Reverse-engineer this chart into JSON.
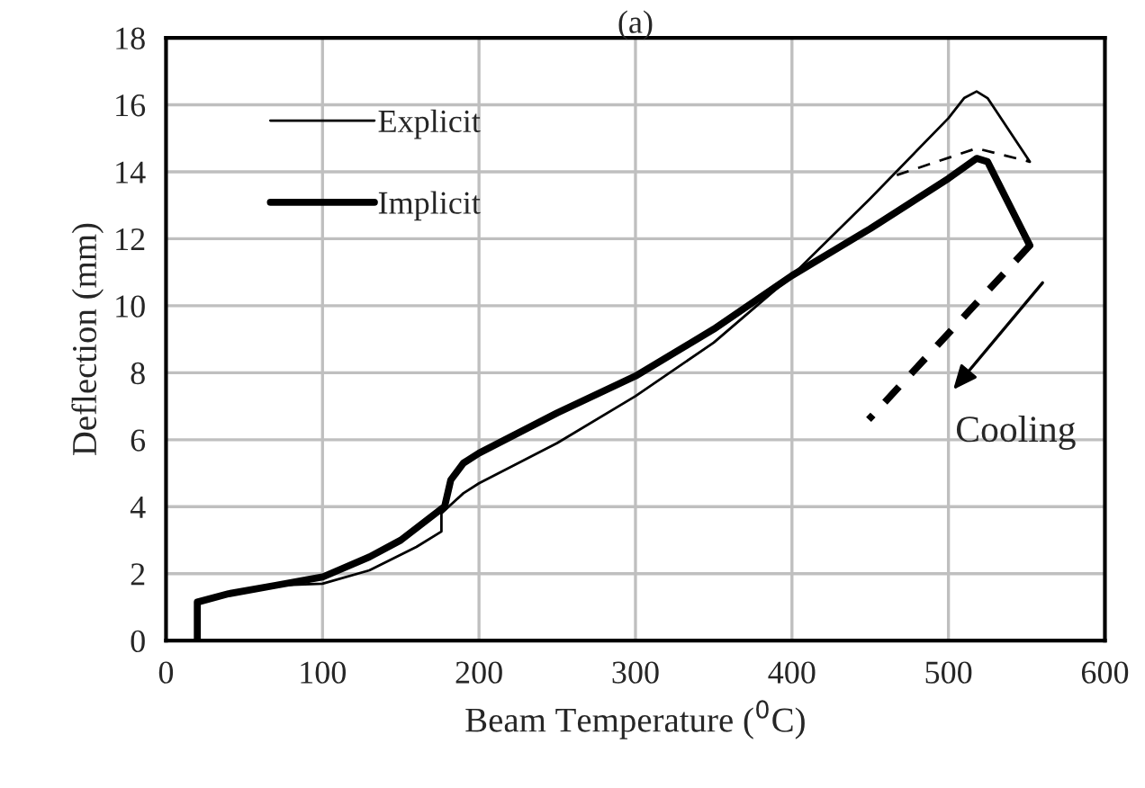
{
  "chart_data": {
    "type": "line",
    "title": "(a)",
    "xlabel": "Beam Temperature ($^{0}$C)",
    "ylabel": "Deflection (mm)",
    "xlim": [
      0,
      600
    ],
    "xticks": [
      0,
      100,
      200,
      300,
      400,
      500,
      600
    ],
    "ylim": [
      0,
      18
    ],
    "yticks": [
      0,
      2,
      4,
      6,
      8,
      10,
      12,
      14,
      16,
      18
    ],
    "grid": true,
    "legend": "top left",
    "series": [
      {
        "name": "Explicit",
        "color": "#000000",
        "line_style": "solid",
        "x": [
          20,
          20,
          40,
          70,
          100,
          130,
          160,
          176,
          176,
          190,
          200,
          250,
          300,
          350,
          400,
          450,
          500,
          510,
          518,
          525,
          552
        ],
        "values": [
          0,
          1.1,
          1.4,
          1.65,
          1.7,
          2.1,
          2.8,
          3.26,
          3.8,
          4.4,
          4.7,
          5.9,
          7.3,
          8.9,
          10.9,
          13.2,
          15.6,
          16.2,
          16.4,
          16.2,
          14.3
        ]
      },
      {
        "name": "Implicit",
        "color": "#000000",
        "line_style": "solid",
        "x": [
          20,
          20,
          40,
          70,
          100,
          130,
          150,
          175,
          178,
          182,
          190,
          200,
          250,
          300,
          350,
          400,
          450,
          500,
          518,
          525,
          552
        ],
        "values": [
          0,
          1.15,
          1.4,
          1.65,
          1.9,
          2.5,
          3.0,
          3.9,
          4.0,
          4.8,
          5.3,
          5.6,
          6.8,
          7.9,
          9.3,
          10.9,
          12.3,
          13.8,
          14.4,
          14.3,
          11.8
        ]
      },
      {
        "color": "#000000",
        "line_style": "dashed",
        "x": [
          467,
          518,
          552
        ],
        "values": [
          13.9,
          14.7,
          14.3
        ]
      },
      {
        "color": "#000000",
        "line_style": "dashed",
        "x": [
          552,
          449
        ],
        "values": [
          11.8,
          6.6
        ]
      }
    ],
    "annotations": [
      "Cooling"
    ]
  }
}
